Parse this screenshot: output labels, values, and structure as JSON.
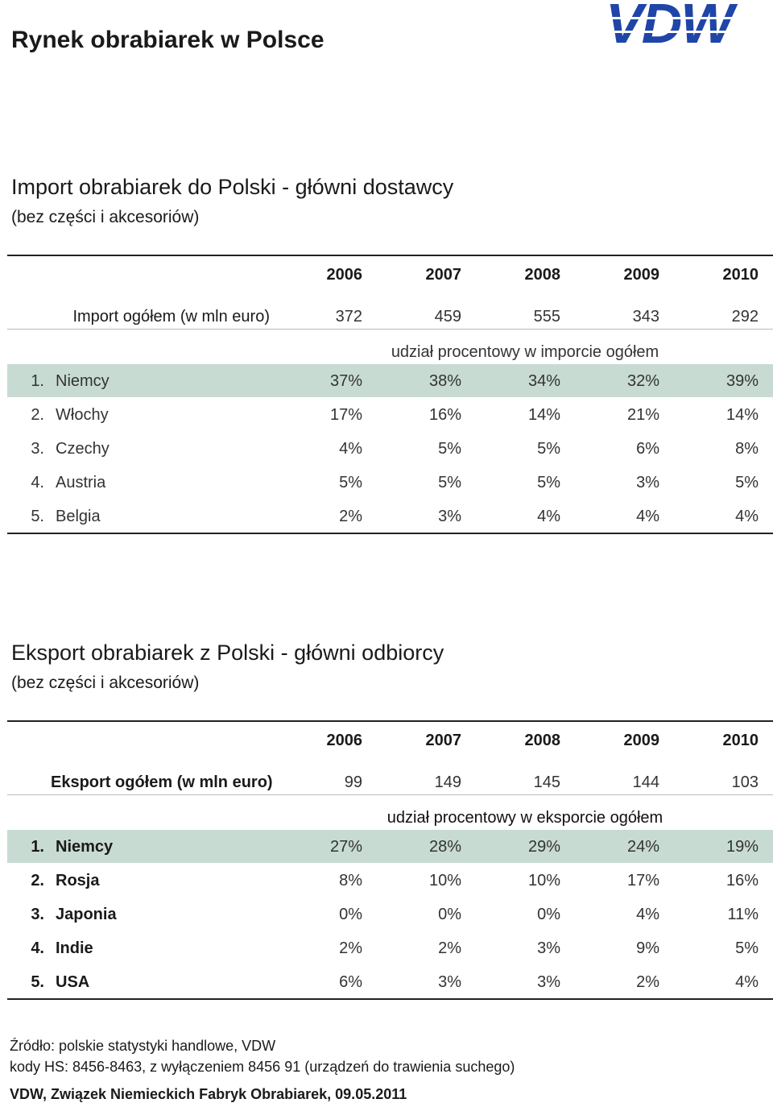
{
  "header": {
    "title": "Rynek obrabiarek w Polsce",
    "logo": "VDW"
  },
  "sections": [
    {
      "title": "Import obrabiarek do Polski - główni dostawcy",
      "subtitle": "(bez części i akcesoriów)",
      "table": {
        "years": [
          "2006",
          "2007",
          "2008",
          "2009",
          "2010"
        ],
        "total": {
          "label": "Import ogółem (w mln euro)",
          "values": [
            "372",
            "459",
            "555",
            "343",
            "292"
          ]
        },
        "share_caption": "udział procentowy w imporcie ogółem",
        "rows": [
          {
            "rank": "1.",
            "name": "Niemcy",
            "values": [
              "37%",
              "38%",
              "34%",
              "32%",
              "39%"
            ]
          },
          {
            "rank": "2.",
            "name": "Włochy",
            "values": [
              "17%",
              "16%",
              "14%",
              "21%",
              "14%"
            ]
          },
          {
            "rank": "3.",
            "name": "Czechy",
            "values": [
              "4%",
              "5%",
              "5%",
              "6%",
              "8%"
            ]
          },
          {
            "rank": "4.",
            "name": "Austria",
            "values": [
              "5%",
              "5%",
              "5%",
              "3%",
              "5%"
            ]
          },
          {
            "rank": "5.",
            "name": "Belgia",
            "values": [
              "2%",
              "3%",
              "4%",
              "4%",
              "4%"
            ]
          }
        ]
      }
    },
    {
      "title": "Eksport obrabiarek z Polski - główni odbiorcy",
      "subtitle": "(bez części i akcesoriów)",
      "table": {
        "years": [
          "2006",
          "2007",
          "2008",
          "2009",
          "2010"
        ],
        "total": {
          "label": "Eksport ogółem (w mln euro)",
          "values": [
            "99",
            "149",
            "145",
            "144",
            "103"
          ]
        },
        "share_caption": "udział procentowy w eksporcie ogółem",
        "rows": [
          {
            "rank": "1.",
            "name": "Niemcy",
            "values": [
              "27%",
              "28%",
              "29%",
              "24%",
              "19%"
            ]
          },
          {
            "rank": "2.",
            "name": "Rosja",
            "values": [
              "8%",
              "10%",
              "10%",
              "17%",
              "16%"
            ]
          },
          {
            "rank": "3.",
            "name": "Japonia",
            "values": [
              "0%",
              "0%",
              "0%",
              "4%",
              "11%"
            ]
          },
          {
            "rank": "4.",
            "name": "Indie",
            "values": [
              "2%",
              "2%",
              "3%",
              "9%",
              "5%"
            ]
          },
          {
            "rank": "5.",
            "name": "USA",
            "values": [
              "6%",
              "3%",
              "3%",
              "2%",
              "4%"
            ]
          }
        ]
      }
    }
  ],
  "footer": [
    "Źródło: polskie statystyki handlowe, VDW",
    "kody HS: 8456-8463, z wyłączeniem 8456 91 (urządzeń do trawienia suchego)",
    "VDW, Związek Niemieckich Fabryk Obrabiarek, 09.05.2011"
  ]
}
